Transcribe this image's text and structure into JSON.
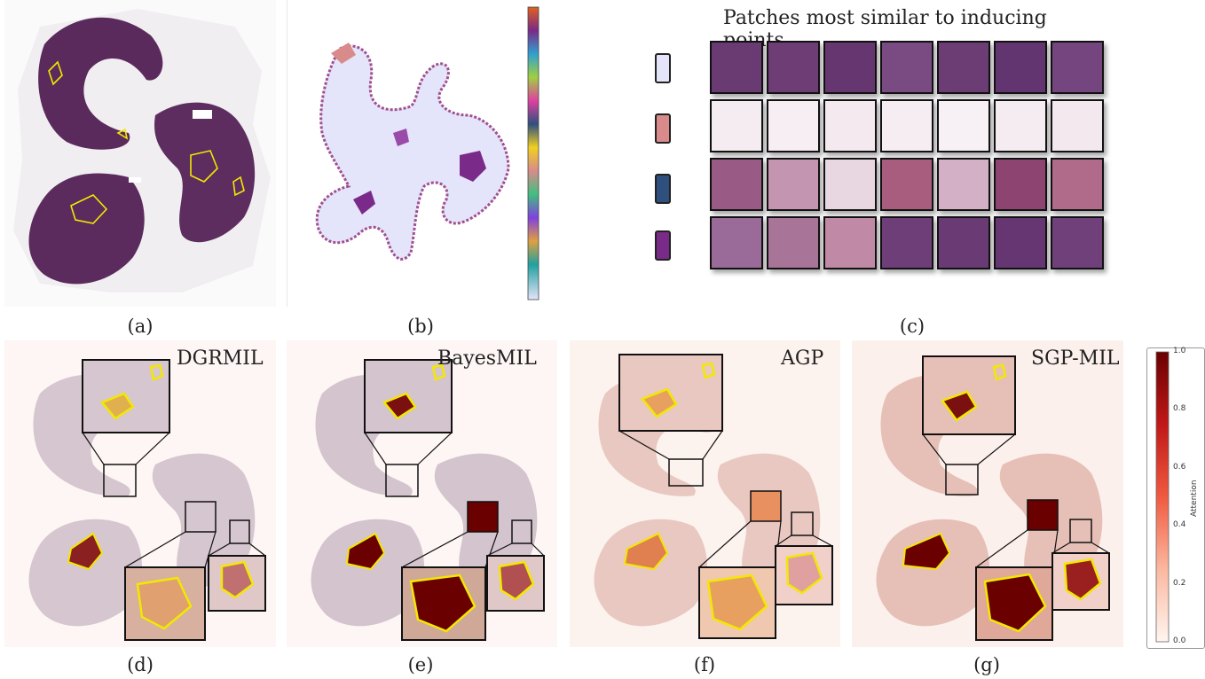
{
  "figure": {
    "captions": {
      "a": "(a)",
      "b": "(b)",
      "c": "(c)",
      "d": "(d)",
      "e": "(e)",
      "f": "(f)",
      "g": "(g)"
    },
    "panel_c_title": "Patches most similar to inducing points",
    "method_titles": {
      "d": "DGRMIL",
      "e": "BayesMIL",
      "f": "AGP",
      "g": "SGP-MIL"
    },
    "colorbar": {
      "label": "Attention",
      "ticks": [
        "1.0",
        "0.8",
        "0.6",
        "0.4",
        "0.2",
        "0.0"
      ],
      "colors": {
        "high": "#6b0000",
        "mid": "#e8432a",
        "low": "#fff5f0"
      }
    },
    "inducing_point_colors": [
      "#e4e4fa",
      "#d98a8a",
      "#2f4f7f",
      "#7a2a88"
    ],
    "overlay_color": "#f2e800"
  }
}
